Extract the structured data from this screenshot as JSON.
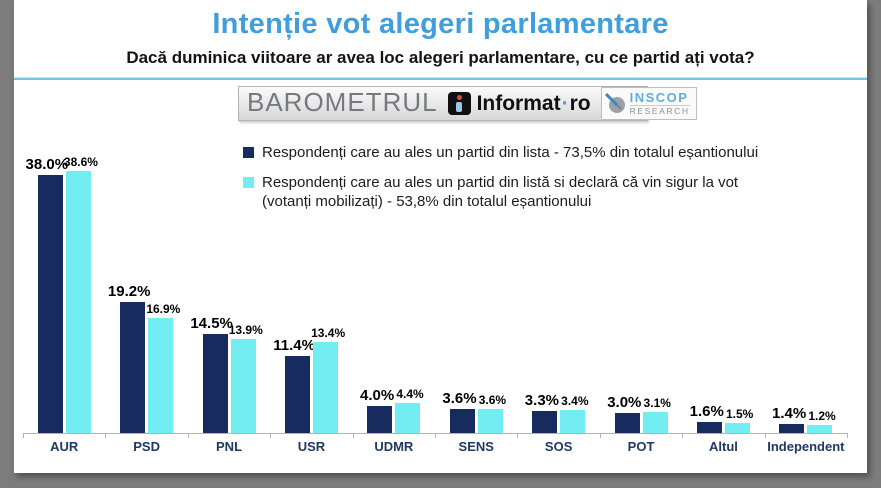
{
  "header": {
    "title": "Intenție vot alegeri parlamentare",
    "subtitle": "Dacă duminica viitoare ar avea loc alegeri parlamentare, cu ce partid ați vota?"
  },
  "banner": {
    "barometrul": "BAROMETRUL",
    "informat_name": "Informat",
    "informat_sep": "·",
    "informat_tld": "ro",
    "inscop_line1": "INSCOP",
    "inscop_line2": "RESEARCH"
  },
  "legend": {
    "items": [
      {
        "label": "Respondenți care au ales un partid din lista - 73,5% din totalul eșantionului",
        "color": "#182b5e"
      },
      {
        "label": "Respondenți care au ales un partid din listă si declară că vin sigur la vot\n(votanți mobilizați) - 53,8% din totalul eșantionului",
        "color": "#72eef2"
      }
    ]
  },
  "chart_data": {
    "type": "bar",
    "title": "Intenție vot alegeri parlamentare",
    "subtitle": "Dacă duminica viitoare ar avea loc alegeri parlamentare, cu ce partid ați vota?",
    "categories": [
      "AUR",
      "PSD",
      "PNL",
      "USR",
      "UDMR",
      "SENS",
      "SOS",
      "POT",
      "Altul",
      "Independent"
    ],
    "series": [
      {
        "name": "Respondenți care au ales un partid din lista - 73,5% din totalul eșantionului",
        "color": "#182b5e",
        "values": [
          38.0,
          19.2,
          14.5,
          11.4,
          4.0,
          3.6,
          3.3,
          3.0,
          1.6,
          1.4
        ],
        "labels": [
          "38.0%",
          "19.2%",
          "14.5%",
          "11.4%",
          "4.0%",
          "3.6%",
          "3.3%",
          "3.0%",
          "1.6%",
          "1.4%"
        ]
      },
      {
        "name": "Respondenți care au ales un partid din listă si declară că vin sigur la vot (votanți mobilizați) - 53,8% din totalul eșantionului",
        "color": "#72eef2",
        "values": [
          38.6,
          16.9,
          13.9,
          13.4,
          4.4,
          3.6,
          3.4,
          3.1,
          1.5,
          1.2
        ],
        "labels": [
          "38.6%",
          "16.9%",
          "13.9%",
          "13.4%",
          "4.4%",
          "3.6%",
          "3.4%",
          "3.1%",
          "1.5%",
          "1.2%"
        ]
      }
    ],
    "xlabel": "",
    "ylabel": "",
    "ylim": [
      0,
      40
    ],
    "grid": false,
    "legend_position": "top",
    "value_labels": true
  },
  "colors": {
    "title_blue": "#3f9edb",
    "divider_blue": "#76c3e0",
    "bar_navy": "#182b5e",
    "bar_cyan": "#72eef2",
    "category_label_navy": "#1f3864",
    "frame_gray": "#7c7c7c",
    "axis_gray": "#b3b3b3"
  }
}
